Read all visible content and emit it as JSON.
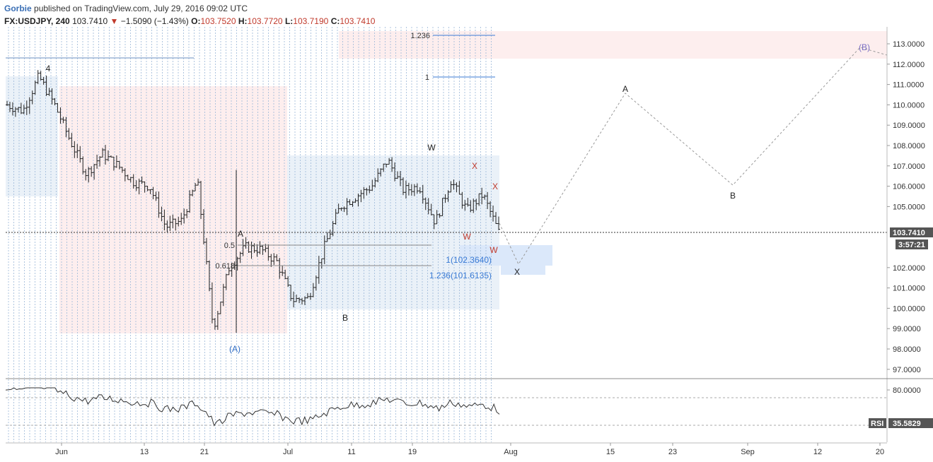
{
  "header": {
    "author": "Gorbie",
    "published": "published on TradingView.com, July 29, 2016 09:02 UTC",
    "symbol": "FX:USDJPY, 240",
    "last": "103.7410",
    "change": "−1.5090 (−1.43%)",
    "open_label": "O:",
    "open": "103.7520",
    "high_label": "H:",
    "high": "103.7720",
    "low_label": "L:",
    "low": "103.7190",
    "close_label": "C:",
    "close": "103.7410"
  },
  "colors": {
    "down": "#c0392b",
    "blue_zone": "#eaf1f8",
    "pink_zone": "#fdeeee",
    "fib_blue": "#3a7bd5",
    "wave_red": "#c0392b",
    "wave_blue": "#2e6bc4",
    "wave_purple": "#7b6fc4"
  },
  "chart_data": [
    {
      "type": "candlestick",
      "symbol": "FX:USDJPY",
      "interval": "240",
      "ylim": [
        96.5,
        113.8
      ],
      "y_ticks": [
        "113.0000",
        "112.0000",
        "111.0000",
        "110.0000",
        "109.0000",
        "108.0000",
        "107.0000",
        "106.0000",
        "105.0000",
        "104.0000",
        "103.0000",
        "102.0000",
        "101.0000",
        "100.0000",
        "99.0000",
        "98.0000",
        "97.0000"
      ],
      "x_ticks": [
        "Jun",
        "13",
        "21",
        "Jul",
        "11",
        "19",
        "Aug",
        "15",
        "23",
        "Sep",
        "12",
        "20"
      ],
      "last_price_label": "103.7410",
      "countdown": "3:57:21",
      "approx_path": [
        {
          "d": "May 25",
          "v": 110.0
        },
        {
          "d": "May 27",
          "v": 109.7
        },
        {
          "d": "May 30",
          "v": 111.4
        },
        {
          "d": "Jun 1",
          "v": 110.0
        },
        {
          "d": "Jun 3",
          "v": 108.2
        },
        {
          "d": "Jun 6",
          "v": 106.6
        },
        {
          "d": "Jun 8",
          "v": 107.6
        },
        {
          "d": "Jun 10",
          "v": 107.0
        },
        {
          "d": "Jun 13",
          "v": 106.2
        },
        {
          "d": "Jun 15",
          "v": 106.0
        },
        {
          "d": "Jun 16",
          "v": 104.0
        },
        {
          "d": "Jun 20",
          "v": 104.3
        },
        {
          "d": "Jun 23",
          "v": 106.3
        },
        {
          "d": "Jun 24",
          "v": 99.0
        },
        {
          "d": "Jun 27",
          "v": 102.0
        },
        {
          "d": "Jun 30",
          "v": 103.0
        },
        {
          "d": "Jul 1",
          "v": 102.9
        },
        {
          "d": "Jul 4",
          "v": 102.3
        },
        {
          "d": "Jul 6",
          "v": 100.4
        },
        {
          "d": "Jul 8",
          "v": 100.5
        },
        {
          "d": "Jul 11",
          "v": 103.0
        },
        {
          "d": "Jul 13",
          "v": 105.0
        },
        {
          "d": "Jul 15",
          "v": 105.5
        },
        {
          "d": "Jul 18",
          "v": 106.0
        },
        {
          "d": "Jul 20",
          "v": 107.3
        },
        {
          "d": "Jul 21",
          "v": 105.8
        },
        {
          "d": "Jul 22",
          "v": 106.0
        },
        {
          "d": "Jul 25",
          "v": 104.2
        },
        {
          "d": "Jul 26",
          "v": 106.3
        },
        {
          "d": "Jul 27",
          "v": 104.8
        },
        {
          "d": "Jul 28",
          "v": 105.6
        },
        {
          "d": "Jul 29",
          "v": 103.74
        }
      ]
    },
    {
      "type": "line",
      "name": "RSI",
      "value_label": "35.5829",
      "y_ticks": [
        "80.0000"
      ]
    }
  ],
  "annotations": {
    "fib_labels": [
      {
        "text": "1.236"
      },
      {
        "text": "1"
      },
      {
        "text": "0.5"
      },
      {
        "text": "0.618"
      }
    ],
    "projection_labels": [
      {
        "text": "1(102.3640)"
      },
      {
        "text": "1.236(101.6135)"
      }
    ],
    "waves": [
      {
        "text": "4",
        "color": "dark"
      },
      {
        "text": "A",
        "color": "dark"
      },
      {
        "text": "(A)",
        "color": "blue"
      },
      {
        "text": "B",
        "color": "dark"
      },
      {
        "text": "W",
        "color": "dark"
      },
      {
        "text": "X",
        "color": "red"
      },
      {
        "text": "X",
        "color": "red"
      },
      {
        "text": "W",
        "color": "red"
      },
      {
        "text": "W",
        "color": "red"
      },
      {
        "text": "X",
        "color": "dark"
      },
      {
        "text": "A",
        "color": "dark"
      },
      {
        "text": "B",
        "color": "dark"
      },
      {
        "text": "(B)",
        "color": "purple"
      }
    ]
  }
}
